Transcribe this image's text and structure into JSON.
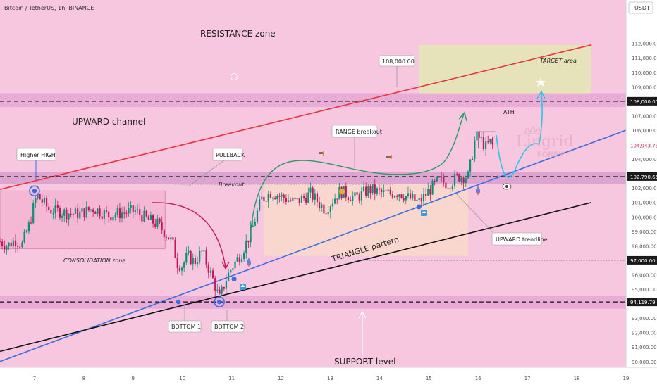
{
  "header": {
    "symbol_title": "Bitcoin / TetherUS, 1h, BINANCE",
    "currency_badge": "USDT"
  },
  "annotations": {
    "resistance_zone": "RESISTANCE zone",
    "upward_channel": "UPWARD channel",
    "higher_high": "Higher HIGH",
    "pullback": "PULLBACK",
    "breakout": "Breakout",
    "consolidation_zone": "CONSOLIDATION zone",
    "range_breakout": "RANGE breakout",
    "triangle_pattern": "TRIANGLE pattern",
    "upward_trendline": "UPWARD trendline",
    "target_area": "TARGET area",
    "ath": "ATH",
    "bottom_1": "BOTTOM 1",
    "bottom_2": "BOTTOM 2",
    "support_level": "SUPPORT level",
    "level_callout": "108,000.00",
    "watermark_main": "Lingrid",
    "watermark_sub": "FOREX"
  },
  "colors": {
    "background": "#f7c6df",
    "zone_band": "#e7a8d5",
    "consolidation_fill": "#f4b6d3",
    "range_fill": "#fbdcc8",
    "target_fill": "#e3e5b6",
    "channel_upper": "#e8343f",
    "trendline_blue": "#3b6fe0",
    "trendline_black": "#111111",
    "candle_up": "#0a8f7a",
    "candle_down": "#c2185b",
    "current_price_bg": "#c2185b",
    "arrow_pullback": "#c2185b",
    "arrow_green": "#2a9a6a",
    "projection_cyan": "#2cc6e6"
  },
  "chart_data": {
    "type": "candlestick",
    "title": "Bitcoin / TetherUS, 1h, BINANCE",
    "currency": "USDT",
    "x_tick_labels": [
      "7",
      "8",
      "9",
      "10",
      "11",
      "12",
      "13",
      "14",
      "15",
      "16",
      "17",
      "18",
      "19"
    ],
    "y_ticks": [
      112000,
      111000,
      110000,
      109000,
      108000,
      107000,
      106000,
      105000,
      104000,
      103000,
      102000,
      101000,
      100000,
      99000,
      98000,
      97000,
      96000,
      95000,
      94000,
      93000,
      92000,
      91000,
      90000
    ],
    "y_tick_labels": [
      "112,000.00",
      "111,000.00",
      "110,000.00",
      "109,000.00",
      "108,000.00",
      "107,000.00",
      "106,000.00",
      "105,000.00",
      "104,000.00",
      "103,000.00",
      "102,000.00",
      "101,000.00",
      "100,000.00",
      "99,000.00",
      "98,000.00",
      "97,000.00",
      "96,000.00",
      "95,000.00",
      "94,000.00",
      "93,000.00",
      "92,000.00",
      "91,000.00",
      "90,000.00"
    ],
    "price_axis_labels": [
      {
        "value": 108000,
        "text": "108,000.00",
        "style": "dark"
      },
      {
        "value": 104943.73,
        "text": "104,943.73",
        "style": "current"
      },
      {
        "value": 102790.65,
        "text": "102,790.65",
        "style": "dark"
      },
      {
        "value": 97000,
        "text": "97,000.00",
        "style": "dark"
      },
      {
        "value": 94119.79,
        "text": "94,119.79",
        "style": "dark"
      }
    ],
    "horizontal_levels": [
      108000,
      102790.65,
      97000,
      94119.79
    ],
    "ylim": [
      89600,
      115000
    ],
    "xlim": [
      6.3,
      19.0
    ],
    "current_price": 104943.73,
    "price_path": [
      [
        6.3,
        98300
      ],
      [
        6.45,
        98000
      ],
      [
        6.6,
        98400
      ],
      [
        6.75,
        98100
      ],
      [
        6.9,
        99500
      ],
      [
        7.0,
        101000
      ],
      [
        7.05,
        101500
      ],
      [
        7.1,
        101300
      ],
      [
        7.3,
        100500
      ],
      [
        7.6,
        100300
      ],
      [
        7.9,
        100200
      ],
      [
        8.2,
        100600
      ],
      [
        8.5,
        100100
      ],
      [
        8.8,
        100300
      ],
      [
        9.05,
        100400
      ],
      [
        9.3,
        99800
      ],
      [
        9.5,
        99500
      ],
      [
        9.7,
        98700
      ],
      [
        9.8,
        98200
      ],
      [
        9.9,
        96800
      ],
      [
        10.0,
        96600
      ],
      [
        10.1,
        97300
      ],
      [
        10.25,
        96900
      ],
      [
        10.4,
        97600
      ],
      [
        10.55,
        96300
      ],
      [
        10.65,
        95400
      ],
      [
        10.75,
        94300
      ],
      [
        10.82,
        95000
      ],
      [
        10.9,
        95800
      ],
      [
        11.0,
        96500
      ],
      [
        11.2,
        97500
      ],
      [
        11.4,
        99000
      ],
      [
        11.6,
        101200
      ],
      [
        11.8,
        101700
      ],
      [
        12.0,
        101400
      ],
      [
        12.3,
        101000
      ],
      [
        12.6,
        101600
      ],
      [
        12.9,
        100500
      ],
      [
        13.2,
        101800
      ],
      [
        13.5,
        101300
      ],
      [
        13.8,
        101900
      ],
      [
        14.1,
        101600
      ],
      [
        14.4,
        101700
      ],
      [
        14.6,
        101300
      ],
      [
        14.8,
        101000
      ],
      [
        15.0,
        101800
      ],
      [
        15.2,
        102500
      ],
      [
        15.4,
        102300
      ],
      [
        15.6,
        102800
      ],
      [
        15.8,
        102800
      ],
      [
        15.95,
        105600
      ],
      [
        16.05,
        105400
      ],
      [
        16.15,
        104800
      ],
      [
        16.25,
        105200
      ],
      [
        16.3,
        104943.73
      ]
    ],
    "markers": [
      {
        "label": "Higher HIGH",
        "x": 7.0,
        "y": 101800
      },
      {
        "label": "BOTTOM 1",
        "x": 9.92,
        "y": 94119.79
      },
      {
        "label": "BOTTOM 2",
        "x": 10.75,
        "y": 94119.79
      },
      {
        "label": "ATH",
        "x": 15.95,
        "y": 105700
      }
    ],
    "trendlines": [
      {
        "name": "UPWARD channel",
        "from": [
          6.3,
          101900
        ],
        "to": [
          18.3,
          111900
        ]
      },
      {
        "name": "UPWARD trendline",
        "from": [
          6.3,
          90000
        ],
        "to": [
          19.0,
          106000
        ]
      },
      {
        "name": "TRIANGLE pattern",
        "from": [
          6.3,
          90700
        ],
        "to": [
          18.3,
          101000
        ]
      }
    ],
    "zones": [
      {
        "name": "RESISTANCE zone band",
        "y": [
          107600,
          108550
        ]
      },
      {
        "name": "SUPPORT level band",
        "y": [
          93650,
          94550
        ]
      },
      {
        "name": "RANGE breakout band",
        "y": [
          102300,
          103100
        ]
      },
      {
        "name": "CONSOLIDATION zone",
        "x": [
          6.3,
          9.65
        ],
        "y": [
          97800,
          101800
        ]
      },
      {
        "name": "TARGET area",
        "x": [
          14.8,
          18.3
        ],
        "y": [
          108550,
          111900
        ]
      }
    ],
    "legend": "none",
    "grid": false
  }
}
